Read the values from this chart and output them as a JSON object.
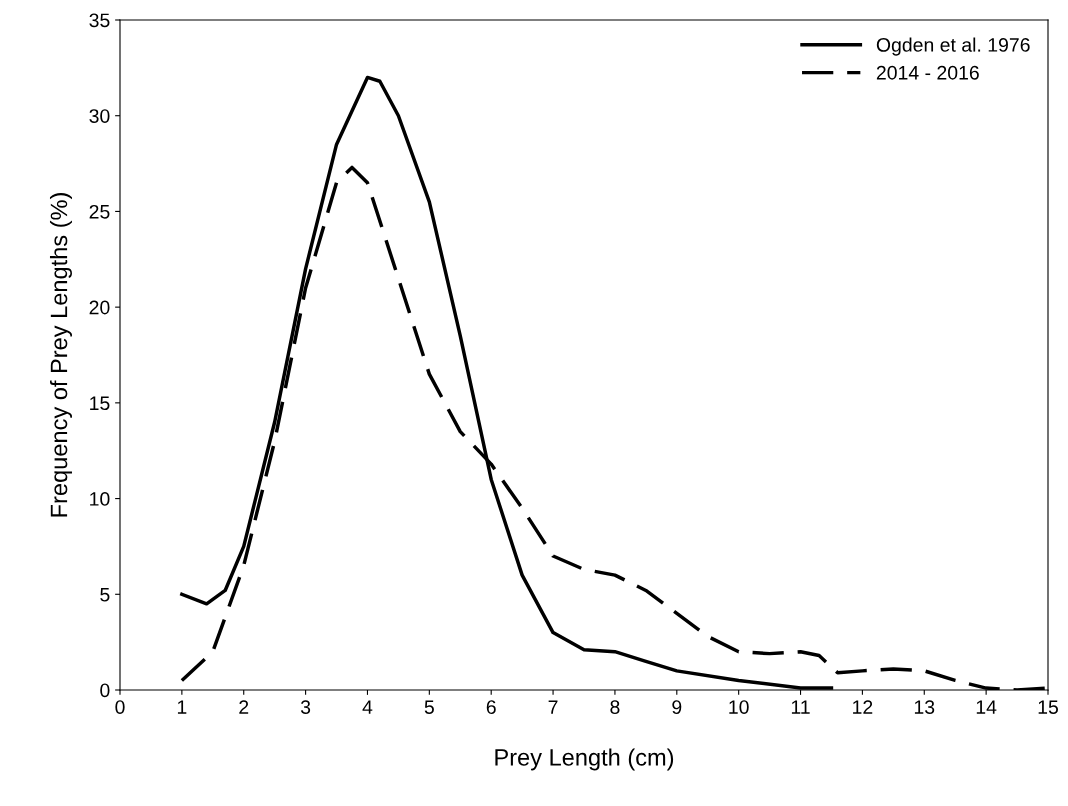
{
  "chart_data": {
    "type": "line",
    "xlabel": "Prey Length (cm)",
    "ylabel": "Frequency of Prey Lengths (%)",
    "xlim": [
      0,
      15
    ],
    "xticks": [
      0,
      1,
      2,
      3,
      4,
      5,
      6,
      7,
      8,
      9,
      10,
      11,
      12,
      13,
      14,
      15
    ],
    "ylim": [
      0,
      35
    ],
    "yticks": [
      0,
      5,
      10,
      15,
      20,
      25,
      30,
      35
    ],
    "grid": false,
    "legend": "top right",
    "marker": "none",
    "series": [
      {
        "name": "Ogden et al. 1976",
        "color": "#000000",
        "line_style": "solid",
        "x": [
          1,
          1.4,
          1.7,
          2,
          2.5,
          3,
          3.5,
          4,
          4.2,
          4.5,
          5,
          5.5,
          6,
          6.5,
          7,
          7.5,
          8,
          8.5,
          9,
          10,
          11,
          11.5
        ],
        "values": [
          5,
          4.5,
          5.2,
          7.5,
          14,
          22,
          28.5,
          32,
          31.8,
          30,
          25.5,
          18.5,
          11,
          6,
          3,
          2.1,
          2,
          1.5,
          1,
          0.5,
          0.1,
          0.1
        ]
      },
      {
        "name": "2014 - 2016",
        "color": "#000000",
        "line_style": "dashed",
        "x": [
          1,
          1.5,
          2,
          2.5,
          3,
          3.5,
          3.75,
          4,
          4.5,
          5,
          5.5,
          6,
          6.5,
          7,
          7.5,
          8,
          8.5,
          9,
          9.5,
          10,
          10.5,
          11,
          11.3,
          11.6,
          12,
          12.5,
          13,
          13.5,
          14,
          14.5,
          15
        ],
        "values": [
          0.5,
          2,
          6.5,
          13,
          21,
          26.5,
          27.3,
          26.5,
          21.5,
          16.5,
          13.5,
          11.8,
          9.5,
          7,
          6.3,
          6,
          5.2,
          4,
          2.8,
          2,
          1.9,
          2,
          1.8,
          0.9,
          1,
          1.1,
          1,
          0.5,
          0.1,
          0,
          0.1
        ]
      }
    ]
  }
}
